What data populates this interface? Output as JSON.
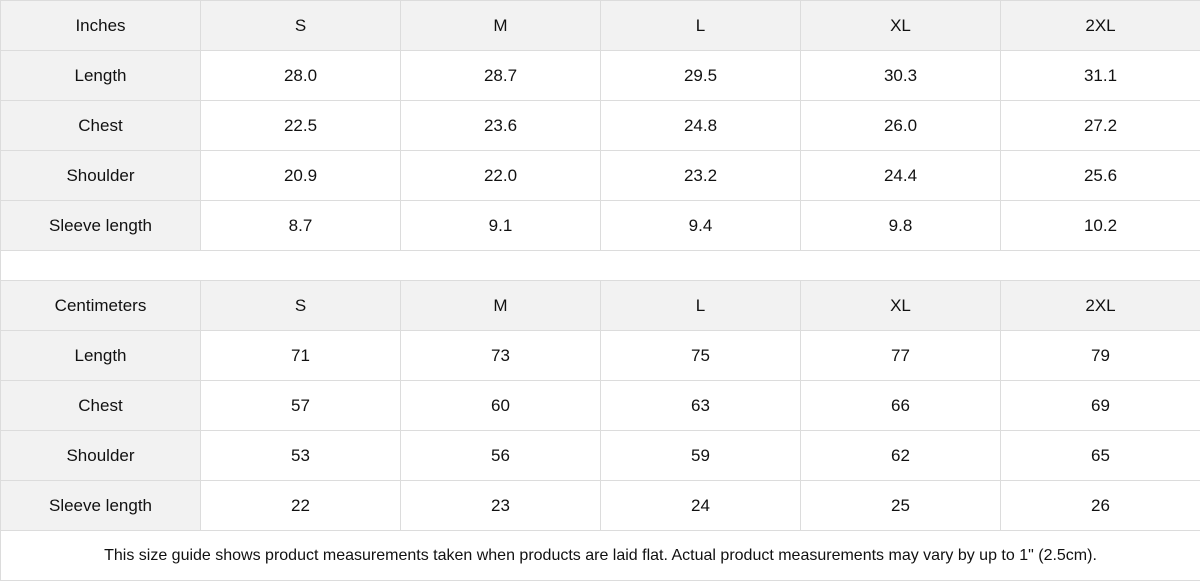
{
  "tables": [
    {
      "unit": "Inches",
      "sizes": [
        "S",
        "M",
        "L",
        "XL",
        "2XL"
      ],
      "rows": [
        {
          "label": "Length",
          "values": [
            "28.0",
            "28.7",
            "29.5",
            "30.3",
            "31.1"
          ]
        },
        {
          "label": "Chest",
          "values": [
            "22.5",
            "23.6",
            "24.8",
            "26.0",
            "27.2"
          ]
        },
        {
          "label": "Shoulder",
          "values": [
            "20.9",
            "22.0",
            "23.2",
            "24.4",
            "25.6"
          ]
        },
        {
          "label": "Sleeve length",
          "values": [
            "8.7",
            "9.1",
            "9.4",
            "9.8",
            "10.2"
          ]
        }
      ]
    },
    {
      "unit": "Centimeters",
      "sizes": [
        "S",
        "M",
        "L",
        "XL",
        "2XL"
      ],
      "rows": [
        {
          "label": "Length",
          "values": [
            "71",
            "73",
            "75",
            "77",
            "79"
          ]
        },
        {
          "label": "Chest",
          "values": [
            "57",
            "60",
            "63",
            "66",
            "69"
          ]
        },
        {
          "label": "Shoulder",
          "values": [
            "53",
            "56",
            "59",
            "62",
            "65"
          ]
        },
        {
          "label": "Sleeve length",
          "values": [
            "22",
            "23",
            "24",
            "25",
            "26"
          ]
        }
      ]
    }
  ],
  "note": "This size guide shows product measurements taken when products are laid flat.  Actual product measurements may vary by up to 1\" (2.5cm).",
  "colors": {
    "header_bg": "#f2f2f2",
    "border": "#dcdcdc"
  }
}
